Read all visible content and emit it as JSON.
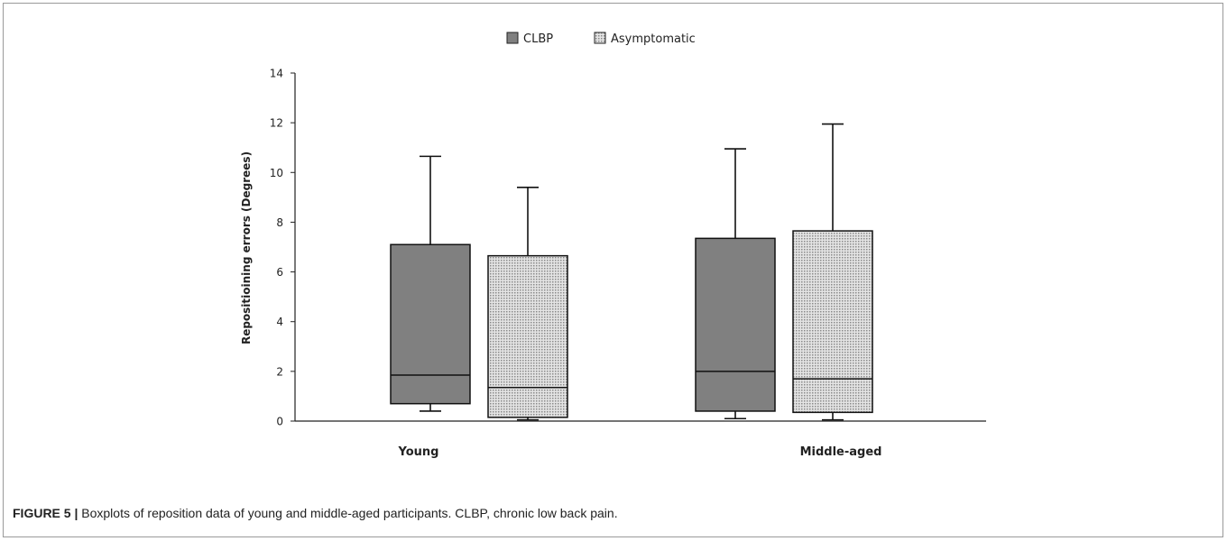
{
  "caption": {
    "label": "FIGURE 5 |",
    "text": "Boxplots of reposition data of young and middle-aged participants. CLBP, chronic low back pain."
  },
  "chart_data": {
    "type": "boxplot",
    "title": "",
    "xlabel": "",
    "ylabel": "Repositioining errors (Degrees)",
    "ylim": [
      0,
      14
    ],
    "yticks": [
      0,
      2,
      4,
      6,
      8,
      10,
      12,
      14
    ],
    "categories": [
      "Young",
      "Middle-aged"
    ],
    "legend_position": "top-center",
    "grid": false,
    "series": [
      {
        "name": "CLBP",
        "fill": "#808080",
        "pattern": "solid",
        "boxes": [
          {
            "min": 0.4,
            "q1": 0.7,
            "median": 1.85,
            "q3": 7.1,
            "max": 10.65
          },
          {
            "min": 0.1,
            "q1": 0.4,
            "median": 2.0,
            "q3": 7.35,
            "max": 10.95
          }
        ]
      },
      {
        "name": "Asymptomatic",
        "fill": "#d0d0d0",
        "pattern": "dotted",
        "boxes": [
          {
            "min": 0.05,
            "q1": 0.15,
            "median": 1.35,
            "q3": 6.65,
            "max": 9.4
          },
          {
            "min": 0.05,
            "q1": 0.35,
            "median": 1.7,
            "q3": 7.65,
            "max": 11.95
          }
        ]
      }
    ]
  }
}
